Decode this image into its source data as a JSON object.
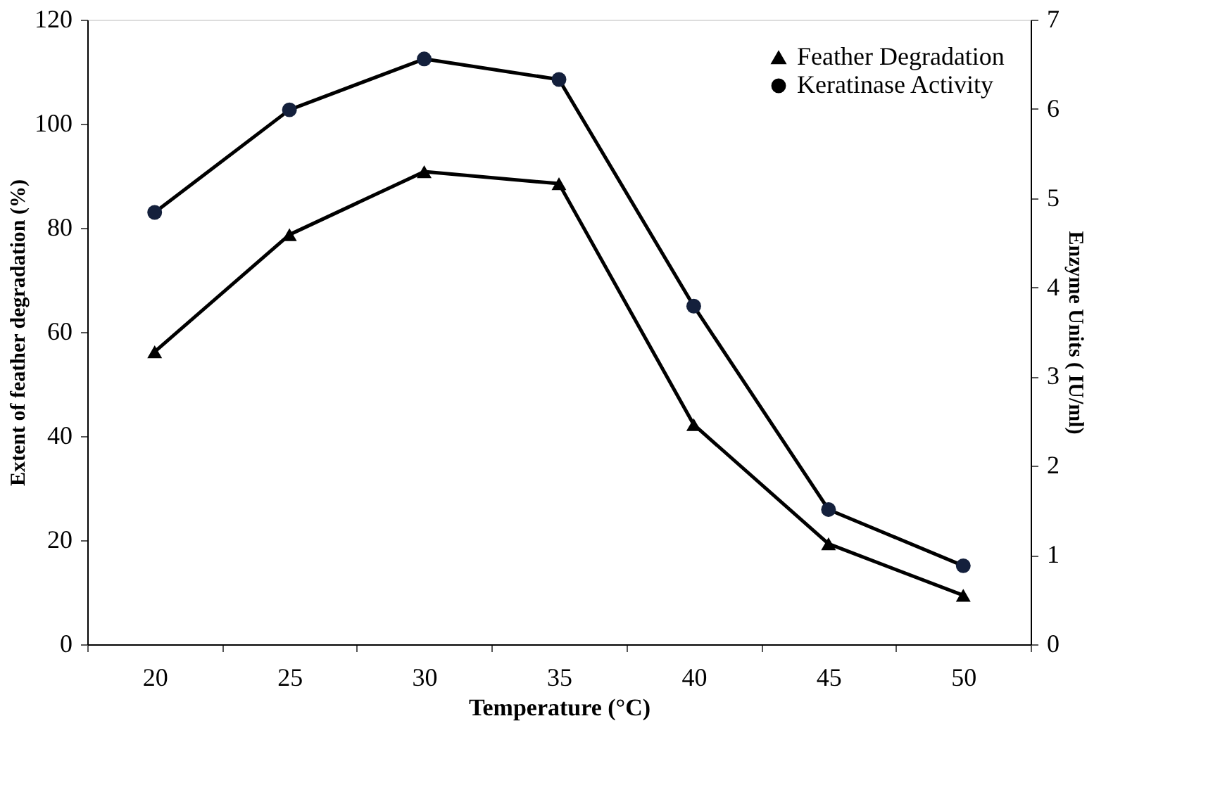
{
  "chart_data": {
    "type": "line",
    "xlabel": "Temperature (°C)",
    "ylabel": "Extent of feather degradation (%)",
    "y2label": "Enzyme Units ( IU/ml)",
    "categories": [
      "20",
      "25",
      "30",
      "35",
      "40",
      "45",
      "50"
    ],
    "series": [
      {
        "name": "Feather Degradation",
        "color": "#000000",
        "marker": "triangle",
        "values": [
          56.2,
          78.7,
          90.8,
          88.5,
          42.2,
          19.3,
          9.4
        ]
      },
      {
        "name": "Keratinase Activity",
        "color": "#000000",
        "marker": "circle",
        "axis": "y2",
        "values": [
          4.84,
          5.99,
          6.56,
          6.33,
          3.79,
          1.51,
          0.88
        ]
      }
    ],
    "ylim": [
      0,
      120
    ],
    "yticks": [
      0,
      20,
      40,
      60,
      80,
      100,
      120
    ],
    "y2lim": [
      0,
      7
    ],
    "y2ticks": [
      0,
      1,
      2,
      3,
      4,
      5,
      6,
      7
    ],
    "grid": false,
    "legend": "top right",
    "line_style": "solid"
  }
}
